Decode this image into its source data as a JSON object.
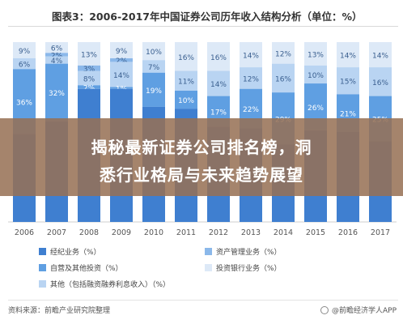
{
  "chart_data": {
    "type": "bar",
    "stacked": true,
    "percent": true,
    "title": "图表3：2006-2017年中国证券公司历年收入结构分析（单位：%）",
    "categories": [
      "2006",
      "2007",
      "2008",
      "2009",
      "2010",
      "2011",
      "2012",
      "2013",
      "2014",
      "2015",
      "2016",
      "2017"
    ],
    "series": [
      {
        "name": "经纪业务（%）",
        "color": "#3f7fd0",
        "values": [
          null,
          null,
          null,
          null,
          null,
          null,
          null,
          null,
          null,
          null,
          null,
          null
        ]
      },
      {
        "name": "自营及其他投资（%）",
        "color": "#5f9fe2",
        "values": [
          36,
          32,
          2,
          1,
          19,
          10,
          17,
          22,
          29,
          26,
          21,
          25
        ]
      },
      {
        "name": "其他（包括融资融券利息收入）（%）",
        "color": "#b9d4f2",
        "values": [
          6,
          4,
          8,
          14,
          7,
          11,
          14,
          12,
          16,
          10,
          15,
          16
        ]
      },
      {
        "name": "资产管理业务（%）",
        "color": "#8bb8ea",
        "values": [
          null,
          2,
          3,
          2,
          null,
          null,
          null,
          null,
          null,
          null,
          null,
          null
        ]
      },
      {
        "name": "投资银行业务（%）",
        "color": "#dde9f7",
        "values": [
          9,
          6,
          13,
          9,
          10,
          16,
          16,
          14,
          12,
          13,
          14,
          14
        ]
      }
    ]
  },
  "banner": {
    "line1": "揭秘最新证券公司排名榜，洞",
    "line2": "悉行业格局与未来趋势展望"
  },
  "footer": {
    "source": "资料来源：前瞻产业研究院整理",
    "brand": "@前瞻经济学人APP"
  }
}
